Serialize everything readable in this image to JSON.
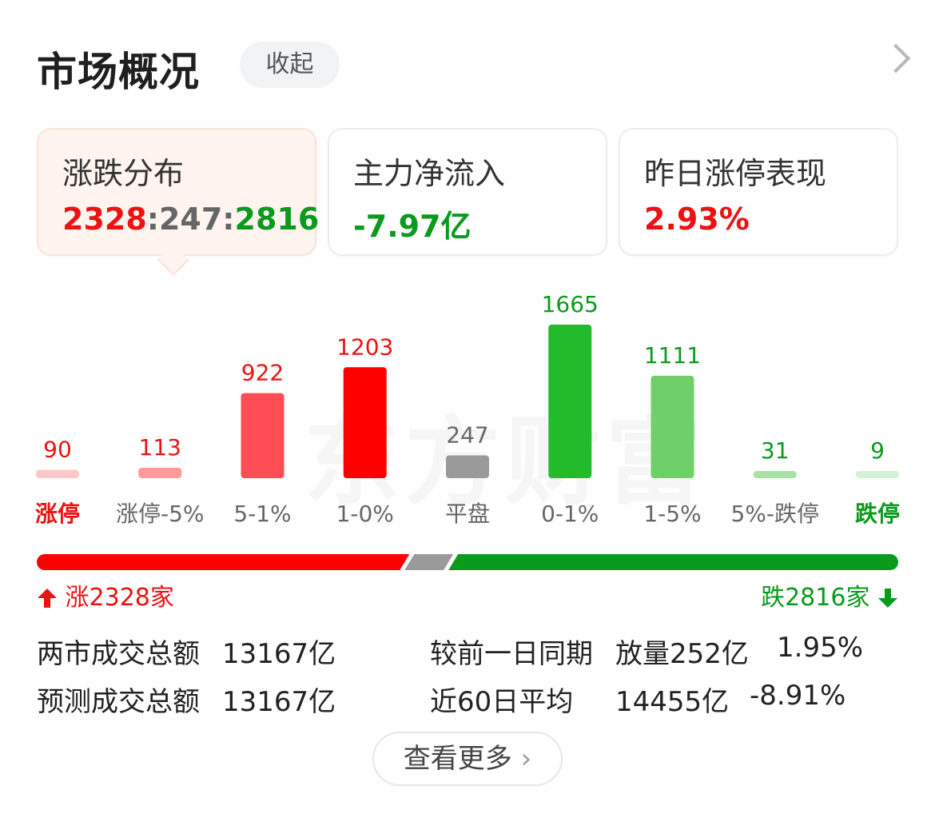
{
  "header": {
    "title": "市场概况",
    "collapse_label": "收起"
  },
  "cards": [
    {
      "label": "涨跌分布",
      "up": "2328",
      "flat": "247",
      "down": "2816"
    },
    {
      "label": "主力净流入",
      "value": "-7.97亿"
    },
    {
      "label": "昨日涨停表现",
      "value": "2.93%"
    }
  ],
  "watermark": "东方财富",
  "chart_data": {
    "type": "bar",
    "categories": [
      "涨停",
      "涨停-5%",
      "5-1%",
      "1-0%",
      "平盘",
      "0-1%",
      "1-5%",
      "5%-跌停",
      "跌停"
    ],
    "values": [
      90,
      113,
      922,
      1203,
      247,
      1665,
      1111,
      31,
      9
    ],
    "colors": [
      "#ffc8c8",
      "#ff9a9a",
      "#ff4d55",
      "#ff0000",
      "#9a9a9a",
      "#22bb2c",
      "#6fd06a",
      "#a6e3a4",
      "#d4f2d3"
    ],
    "value_colors": [
      "#ee1111",
      "#ee1111",
      "#ee1111",
      "#ee1111",
      "#666666",
      "#0a9b1c",
      "#0a9b1c",
      "#0a9b1c",
      "#0a9b1c"
    ],
    "label_colors": [
      "#ee1111",
      "#666666",
      "#666666",
      "#666666",
      "#666666",
      "#666666",
      "#666666",
      "#666666",
      "#0a9b1c"
    ],
    "label_bold": [
      true,
      false,
      false,
      false,
      false,
      false,
      false,
      false,
      true
    ],
    "ylim": [
      0,
      1665
    ],
    "grid": false
  },
  "distribution": {
    "up_count": 2328,
    "flat_count": 247,
    "down_count": 2816,
    "up_label": "涨2328家",
    "down_label": "跌2816家",
    "up_color": "#ff0000",
    "flat_color": "#9a9a9a",
    "down_color": "#0a9b1c"
  },
  "stats": {
    "row1_label": "两市成交总额",
    "row1_value": "13167亿",
    "row2_label": "预测成交总额",
    "row2_value": "13167亿",
    "cmp1_label": "较前一日同期",
    "cmp1_value": "放量252亿",
    "cmp1_pct": "1.95%",
    "cmp2_label": "近60日平均",
    "cmp2_value": "14455亿",
    "cmp2_pct": "-8.91%"
  },
  "more_label": "查看更多",
  "colors": {
    "up": "#ee1111",
    "down": "#0a9b1c",
    "flat": "#666666"
  }
}
